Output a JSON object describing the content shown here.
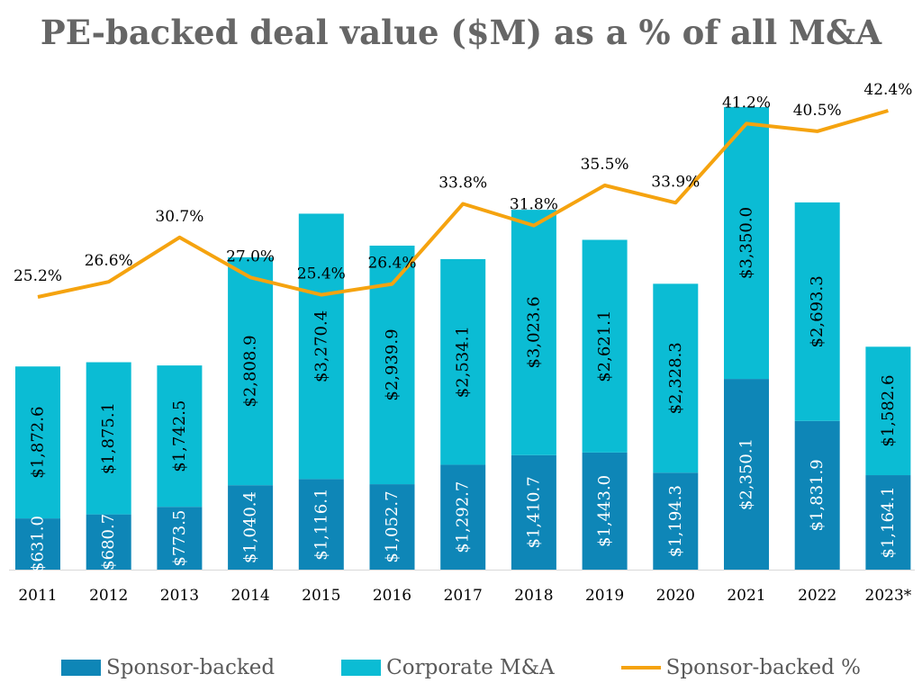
{
  "chart_data": {
    "type": "bar",
    "title": "PE-backed deal value ($M) as a % of all M&A",
    "categories": [
      "2011",
      "2012",
      "2013",
      "2014",
      "2015",
      "2016",
      "2017",
      "2018",
      "2019",
      "2020",
      "2021",
      "2022",
      "2023*"
    ],
    "stacked": true,
    "series": [
      {
        "name": "Sponsor-backed",
        "color": "#0e86b7",
        "values": [
          631.0,
          680.7,
          773.5,
          1040.4,
          1116.1,
          1052.7,
          1292.7,
          1410.7,
          1443.0,
          1194.3,
          2350.1,
          1831.9,
          1164.1
        ],
        "labels": [
          "$631.0",
          "$680.7",
          "$773.5",
          "$1,040.4",
          "$1,116.1",
          "$1,052.7",
          "$1,292.7",
          "$1,410.7",
          "$1,443.0",
          "$1,194.3",
          "$2,350.1",
          "$1,831.9",
          "$1,164.1"
        ]
      },
      {
        "name": "Corporate M&A",
        "color": "#0bbcd4",
        "values": [
          1872.6,
          1875.1,
          1742.5,
          2808.9,
          3270.4,
          2939.9,
          2534.1,
          3023.6,
          2621.1,
          2328.3,
          3350.0,
          2693.3,
          1582.6
        ],
        "labels": [
          "$1,872.6",
          "$1,875.1",
          "$1,742.5",
          "$2,808.9",
          "$3,270.4",
          "$2,939.9",
          "$2,534.1",
          "$3,023.6",
          "$2,621.1",
          "$2,328.3",
          "$3,350.0",
          "$2,693.3",
          "$1,582.6"
        ]
      }
    ],
    "line": {
      "name": "Sponsor-backed %",
      "color": "#f5a30f",
      "values": [
        25.2,
        26.6,
        30.7,
        27.0,
        25.4,
        26.4,
        33.8,
        31.8,
        35.5,
        33.9,
        41.2,
        40.5,
        42.4
      ],
      "labels": [
        "25.2%",
        "26.6%",
        "30.7%",
        "27.0%",
        "25.4%",
        "26.4%",
        "33.8%",
        "31.8%",
        "35.5%",
        "33.9%",
        "41.2%",
        "40.5%",
        "42.4%"
      ]
    },
    "legend_position": "bottom",
    "grid": false
  }
}
